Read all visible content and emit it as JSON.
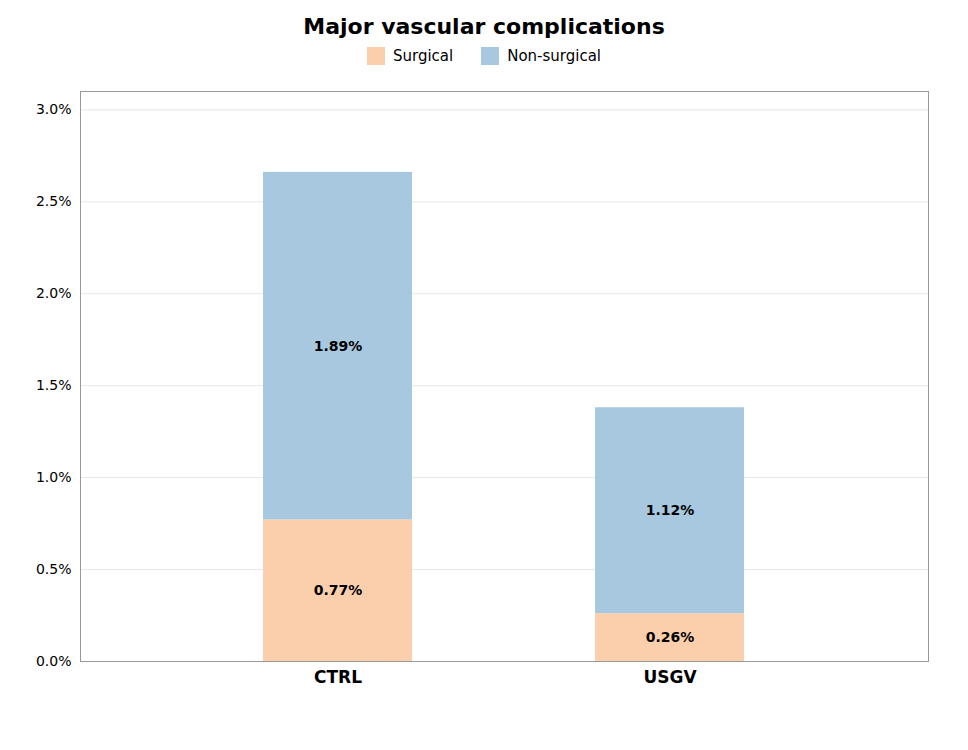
{
  "chart_data": {
    "type": "bar",
    "title": "Major vascular complications",
    "stacked": true,
    "categories": [
      "CTRL",
      "USGV"
    ],
    "series": [
      {
        "name": "Surgical",
        "color": "#FBCFAC",
        "values": [
          0.0077,
          0.0026
        ],
        "value_labels": [
          "0.77%",
          "0.26%"
        ]
      },
      {
        "name": "Non-surgical",
        "color": "#A8C8E0",
        "values": [
          0.0189,
          0.0112
        ],
        "value_labels": [
          "1.89%",
          "1.12%"
        ]
      }
    ],
    "ylim": [
      0,
      0.031
    ],
    "yticks": [
      {
        "value": 0.0,
        "label": "0.0%"
      },
      {
        "value": 0.005,
        "label": "0.5%"
      },
      {
        "value": 0.01,
        "label": "1.0%"
      },
      {
        "value": 0.015,
        "label": "1.5%"
      },
      {
        "value": 0.02,
        "label": "2.0%"
      },
      {
        "value": 0.025,
        "label": "2.5%"
      },
      {
        "value": 0.03,
        "label": "3.0%"
      }
    ],
    "grid": true,
    "legend": "top",
    "data_labels": true
  }
}
